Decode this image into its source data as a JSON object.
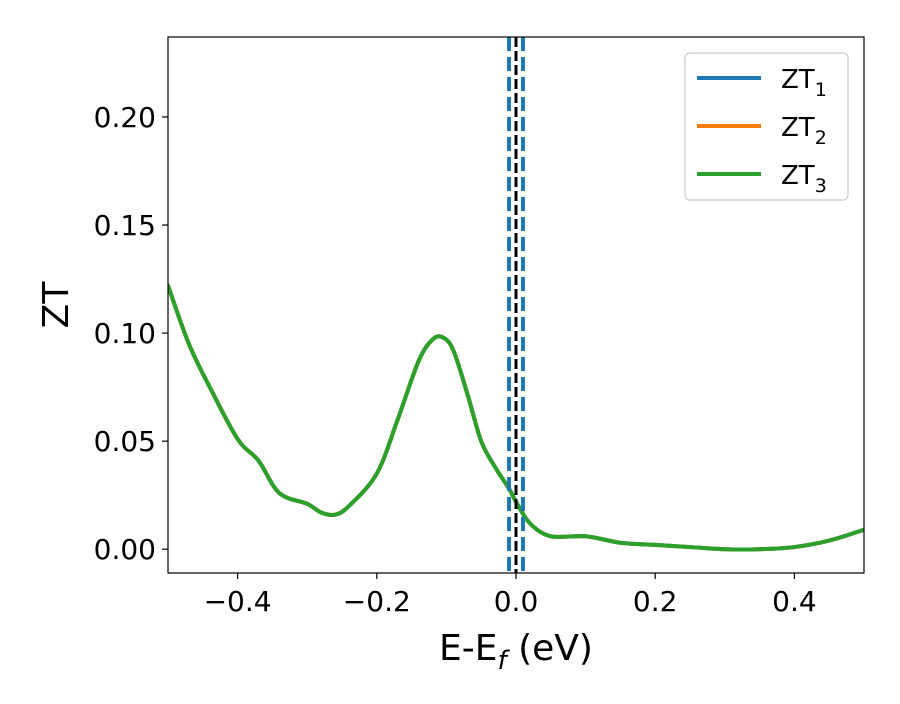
{
  "chart_data": {
    "type": "line",
    "title": "",
    "xlabel_main": "E-E",
    "xlabel_sub": "f",
    "xlabel_unit": " (eV)",
    "ylabel": "ZT",
    "xlim": [
      -0.5,
      0.5
    ],
    "ylim": [
      -0.011,
      0.237
    ],
    "xticks": [
      {
        "value": -0.4,
        "label": "−0.4"
      },
      {
        "value": -0.2,
        "label": "−0.2"
      },
      {
        "value": 0.0,
        "label": "0.0"
      },
      {
        "value": 0.2,
        "label": "0.2"
      },
      {
        "value": 0.4,
        "label": "0.4"
      }
    ],
    "yticks": [
      {
        "value": 0.0,
        "label": "0.00"
      },
      {
        "value": 0.05,
        "label": "0.05"
      },
      {
        "value": 0.1,
        "label": "0.10"
      },
      {
        "value": 0.15,
        "label": "0.15"
      },
      {
        "value": 0.2,
        "label": "0.20"
      }
    ],
    "grid": false,
    "legend_position": "top-right",
    "series": [
      {
        "name_main": "ZT",
        "name_sub": "1",
        "color": "#1f77b4",
        "x": [
          -0.5,
          -0.47,
          -0.44,
          -0.4,
          -0.37,
          -0.34,
          -0.3,
          -0.28,
          -0.26,
          -0.24,
          -0.2,
          -0.17,
          -0.14,
          -0.12,
          -0.105,
          -0.09,
          -0.07,
          -0.05,
          -0.03,
          -0.01,
          0.0,
          0.02,
          0.05,
          0.1,
          0.15,
          0.2,
          0.25,
          0.3,
          0.35,
          0.4,
          0.45,
          0.5
        ],
        "y": [
          0.122,
          0.095,
          0.075,
          0.051,
          0.041,
          0.026,
          0.021,
          0.017,
          0.016,
          0.02,
          0.035,
          0.06,
          0.087,
          0.097,
          0.098,
          0.092,
          0.072,
          0.05,
          0.038,
          0.028,
          0.022,
          0.012,
          0.006,
          0.006,
          0.003,
          0.002,
          0.001,
          0.0,
          0.0,
          0.001,
          0.004,
          0.009
        ]
      },
      {
        "name_main": "ZT",
        "name_sub": "2",
        "color": "#ff7f0e",
        "x": [
          -0.5,
          -0.47,
          -0.44,
          -0.4,
          -0.37,
          -0.34,
          -0.3,
          -0.28,
          -0.26,
          -0.24,
          -0.2,
          -0.17,
          -0.14,
          -0.12,
          -0.105,
          -0.09,
          -0.07,
          -0.05,
          -0.03,
          -0.01,
          0.0,
          0.02,
          0.05,
          0.1,
          0.15,
          0.2,
          0.25,
          0.3,
          0.35,
          0.4,
          0.45,
          0.5
        ],
        "y": [
          0.122,
          0.095,
          0.075,
          0.051,
          0.041,
          0.026,
          0.021,
          0.017,
          0.016,
          0.02,
          0.035,
          0.06,
          0.087,
          0.097,
          0.098,
          0.092,
          0.072,
          0.05,
          0.038,
          0.028,
          0.022,
          0.012,
          0.006,
          0.006,
          0.003,
          0.002,
          0.001,
          0.0,
          0.0,
          0.001,
          0.004,
          0.009
        ]
      },
      {
        "name_main": "ZT",
        "name_sub": "3",
        "color": "#2ca02c",
        "x": [
          -0.5,
          -0.47,
          -0.44,
          -0.4,
          -0.37,
          -0.34,
          -0.3,
          -0.28,
          -0.26,
          -0.24,
          -0.2,
          -0.17,
          -0.14,
          -0.12,
          -0.105,
          -0.09,
          -0.07,
          -0.05,
          -0.03,
          -0.01,
          0.0,
          0.02,
          0.05,
          0.1,
          0.15,
          0.2,
          0.25,
          0.3,
          0.35,
          0.4,
          0.45,
          0.5
        ],
        "y": [
          0.122,
          0.095,
          0.075,
          0.051,
          0.041,
          0.026,
          0.021,
          0.017,
          0.016,
          0.02,
          0.035,
          0.06,
          0.087,
          0.097,
          0.098,
          0.092,
          0.072,
          0.05,
          0.038,
          0.028,
          0.022,
          0.012,
          0.006,
          0.006,
          0.003,
          0.002,
          0.001,
          0.0,
          0.0,
          0.001,
          0.004,
          0.009
        ]
      }
    ],
    "vertical_lines": [
      {
        "x": -0.01,
        "style": "dashed",
        "color": "#1f77b4"
      },
      {
        "x": 0.01,
        "style": "dashed",
        "color": "#1f77b4"
      },
      {
        "x": 0.0,
        "style": "dashed",
        "color": "#000000"
      }
    ]
  }
}
